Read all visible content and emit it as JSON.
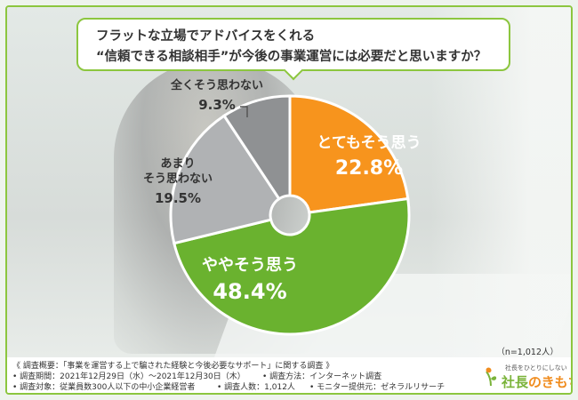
{
  "question": {
    "line1": "フラットな立場でアドバイスをくれる",
    "line2": "“信頼できる相談相手”が今後の事業運営には必要だと思いますか？"
  },
  "chart_data": {
    "type": "pie",
    "slices": [
      {
        "label": "とてもそう思う",
        "label_lines": [
          "とてもそう思う"
        ],
        "value": 22.8,
        "value_label": "22.8%",
        "color": "#f7941d"
      },
      {
        "label": "ややそう思う",
        "label_lines": [
          "ややそう思う"
        ],
        "value": 48.4,
        "value_label": "48.4%",
        "color": "#6ab22f"
      },
      {
        "label": "あまりそう思わない",
        "label_lines": [
          "あまり",
          "そう思わない"
        ],
        "value": 19.5,
        "value_label": "19.5%",
        "color": "#b0b2b4"
      },
      {
        "label": "全くそう思わない",
        "label_lines": [
          "全くそう思わない"
        ],
        "value": 9.3,
        "value_label": "9.3%",
        "color": "#8f9193"
      }
    ],
    "donut": true,
    "sample_size": "（n=1,012人）"
  },
  "footer": {
    "overview": "《 調査概要：「事業を運営する上で騙された経験と今後必要なサポート」に関する調査 》",
    "period": "• 調査期間：2021年12月29日（水）～2021年12月30日（木）",
    "method": "• 調査方法：インターネット調査",
    "target": "• 調査対象：従業員数300人以下の中小企業経営者",
    "count": "• 調査人数：1,012人",
    "provider": "• モニター提供元：ゼネラルリサーチ"
  },
  "logo": {
    "tagline": "社長をひとりにしない",
    "name_part1": "社長",
    "name_part2": "のきもち",
    "accent_green": "#7ab33a",
    "accent_orange": "#f08c1e"
  }
}
